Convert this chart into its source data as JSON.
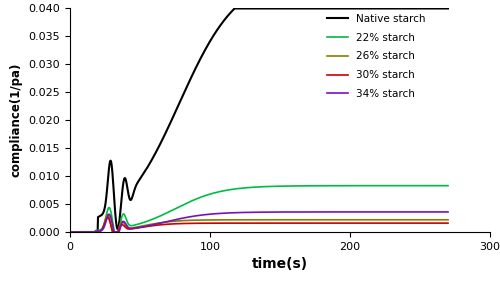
{
  "xlabel": "time(s)",
  "ylabel": "compliance(1/pa)",
  "xlim": [
    0,
    300
  ],
  "ylim": [
    0,
    0.04
  ],
  "yticks": [
    0,
    0.005,
    0.01,
    0.015,
    0.02,
    0.025,
    0.03,
    0.035,
    0.04
  ],
  "xticks": [
    0,
    100,
    200,
    300
  ],
  "series": [
    {
      "label": "Native starch",
      "color": "#000000"
    },
    {
      "label": "22% starch",
      "color": "#00bb44"
    },
    {
      "label": "26% starch",
      "color": "#808000"
    },
    {
      "label": "30% starch",
      "color": "#cc0000"
    },
    {
      "label": "34% starch",
      "color": "#7711bb"
    }
  ],
  "figsize": [
    5.0,
    2.83
  ],
  "dpi": 100
}
